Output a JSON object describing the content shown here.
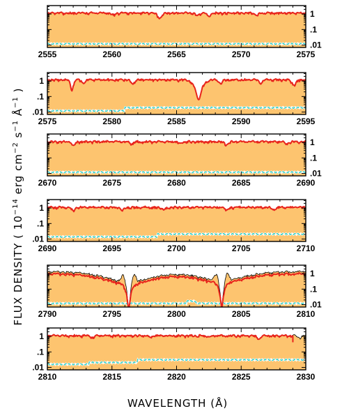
{
  "chart_data": {
    "type": "line",
    "xlabel": "WAVELENGTH  (Å)",
    "ylabel_parts": {
      "prefix": "FLUX DENSITY  ( 10",
      "exp1": "−14",
      "mid1": " erg cm",
      "exp2": "−2",
      "mid2": " s",
      "exp3": "−1",
      "mid3": " Å",
      "exp4": "−1",
      "suffix": " )"
    },
    "yscale": "log",
    "ylim": [
      0.007,
      3.5
    ],
    "y_tick_labels": [
      "1",
      ".1",
      ".01"
    ],
    "y_tick_values": [
      1,
      0.1,
      0.01
    ],
    "colors": {
      "fill": "#fdc46f",
      "model": "#000000",
      "observed": "#e8241c",
      "error": "#2fd0c8"
    },
    "panels": [
      {
        "xlim": [
          2555,
          2575
        ],
        "x_ticks": [
          2555,
          2560,
          2565,
          2570,
          2575
        ],
        "tick_side": "right",
        "continuum": 1.25,
        "error_level": 0.012,
        "error_steps": [],
        "absorption_lines": [
          {
            "x": 2563.7,
            "depth": 0.55,
            "width": 0.25
          },
          {
            "x": 2560.1,
            "depth": 0.25,
            "width": 0.2
          },
          {
            "x": 2566.6,
            "depth": 0.35,
            "width": 0.2
          },
          {
            "x": 2567.5,
            "depth": 0.4,
            "width": 0.2
          },
          {
            "x": 2571.2,
            "depth": 0.3,
            "width": 0.2
          }
        ],
        "emission_lines": [],
        "observed_end": null
      },
      {
        "xlim": [
          2575,
          2595
        ],
        "x_ticks": [
          2575,
          2580,
          2585,
          2590,
          2595
        ],
        "tick_side": "left",
        "continuum": 1.3,
        "error_level": 0.012,
        "error_steps": [
          {
            "x": 2581,
            "factor": 1.6
          }
        ],
        "absorption_lines": [
          {
            "x": 2576.9,
            "depth": 0.8,
            "width": 0.2
          },
          {
            "x": 2586.7,
            "depth": 0.95,
            "width": 0.55
          },
          {
            "x": 2577.8,
            "depth": 0.4,
            "width": 0.2
          },
          {
            "x": 2581.6,
            "depth": 0.45,
            "width": 0.2
          },
          {
            "x": 2588.4,
            "depth": 0.45,
            "width": 0.2
          },
          {
            "x": 2591.5,
            "depth": 0.4,
            "width": 0.2
          },
          {
            "x": 2594.1,
            "depth": 0.55,
            "width": 0.25
          }
        ],
        "emission_lines": [],
        "observed_end": null
      },
      {
        "xlim": [
          2670,
          2690
        ],
        "x_ticks": [
          2670,
          2675,
          2680,
          2685,
          2690
        ],
        "tick_side": "right",
        "continuum": 1.2,
        "error_level": 0.012,
        "error_steps": [],
        "absorption_lines": [
          {
            "x": 2672.0,
            "depth": 0.35,
            "width": 0.2
          },
          {
            "x": 2676.5,
            "depth": 0.3,
            "width": 0.2
          },
          {
            "x": 2680.3,
            "depth": 0.25,
            "width": 0.2
          },
          {
            "x": 2683.9,
            "depth": 0.35,
            "width": 0.2
          },
          {
            "x": 2688.5,
            "depth": 0.3,
            "width": 0.2
          }
        ],
        "emission_lines": [],
        "observed_end": null
      },
      {
        "xlim": [
          2690,
          2710
        ],
        "x_ticks": [
          2690,
          2695,
          2700,
          2705,
          2710
        ],
        "tick_side": "left",
        "continuum": 1.2,
        "error_level": 0.014,
        "error_steps": [
          {
            "x": 2698.5,
            "factor": 1.5
          }
        ],
        "absorption_lines": [
          {
            "x": 2692.0,
            "depth": 0.35,
            "width": 0.2
          },
          {
            "x": 2695.8,
            "depth": 0.4,
            "width": 0.2
          },
          {
            "x": 2699.0,
            "depth": 0.3,
            "width": 0.2
          },
          {
            "x": 2703.9,
            "depth": 0.35,
            "width": 0.2
          },
          {
            "x": 2707.5,
            "depth": 0.3,
            "width": 0.2
          }
        ],
        "emission_lines": [],
        "observed_end": null
      },
      {
        "xlim": [
          2790,
          2810
        ],
        "x_ticks": [
          2790,
          2795,
          2800,
          2805,
          2810
        ],
        "tick_side": "right",
        "continuum": 1.45,
        "error_level": 0.012,
        "error_steps": [
          {
            "x": 2800.8,
            "factor": 1.4
          },
          {
            "x": 2801.5,
            "factor": 0.72
          }
        ],
        "absorption_lines": [
          {
            "x": 2796.3,
            "depth": 0.985,
            "width": 0.35
          },
          {
            "x": 2803.5,
            "depth": 0.98,
            "width": 0.35
          }
        ],
        "broad_wings": [
          {
            "x": 2796.3,
            "depth": 0.8,
            "width": 3.2
          },
          {
            "x": 2803.5,
            "depth": 0.75,
            "width": 3.0
          }
        ],
        "emission_lines": [
          {
            "x": 2795.9,
            "height": 0.25
          },
          {
            "x": 2796.7,
            "height": 0.3
          },
          {
            "x": 2803.1,
            "height": 0.22
          },
          {
            "x": 2803.9,
            "height": 0.28
          }
        ],
        "observed_end": null
      },
      {
        "xlim": [
          2810,
          2830
        ],
        "x_ticks": [
          2810,
          2815,
          2820,
          2825,
          2830
        ],
        "tick_side": "left",
        "continuum": 1.2,
        "error_level": 0.016,
        "error_steps": [
          {
            "x": 2813.2,
            "factor": 1.3
          },
          {
            "x": 2817.0,
            "factor": 1.5
          }
        ],
        "absorption_lines": [
          {
            "x": 2813.5,
            "depth": 0.25,
            "width": 0.2
          },
          {
            "x": 2818.0,
            "depth": 0.2,
            "width": 0.2
          },
          {
            "x": 2822.5,
            "depth": 0.2,
            "width": 0.2
          },
          {
            "x": 2826.4,
            "depth": 0.4,
            "width": 0.2
          },
          {
            "x": 2829.5,
            "depth": 0.3,
            "width": 0.2
          }
        ],
        "emission_lines": [],
        "observed_end": 2829.0
      }
    ]
  }
}
